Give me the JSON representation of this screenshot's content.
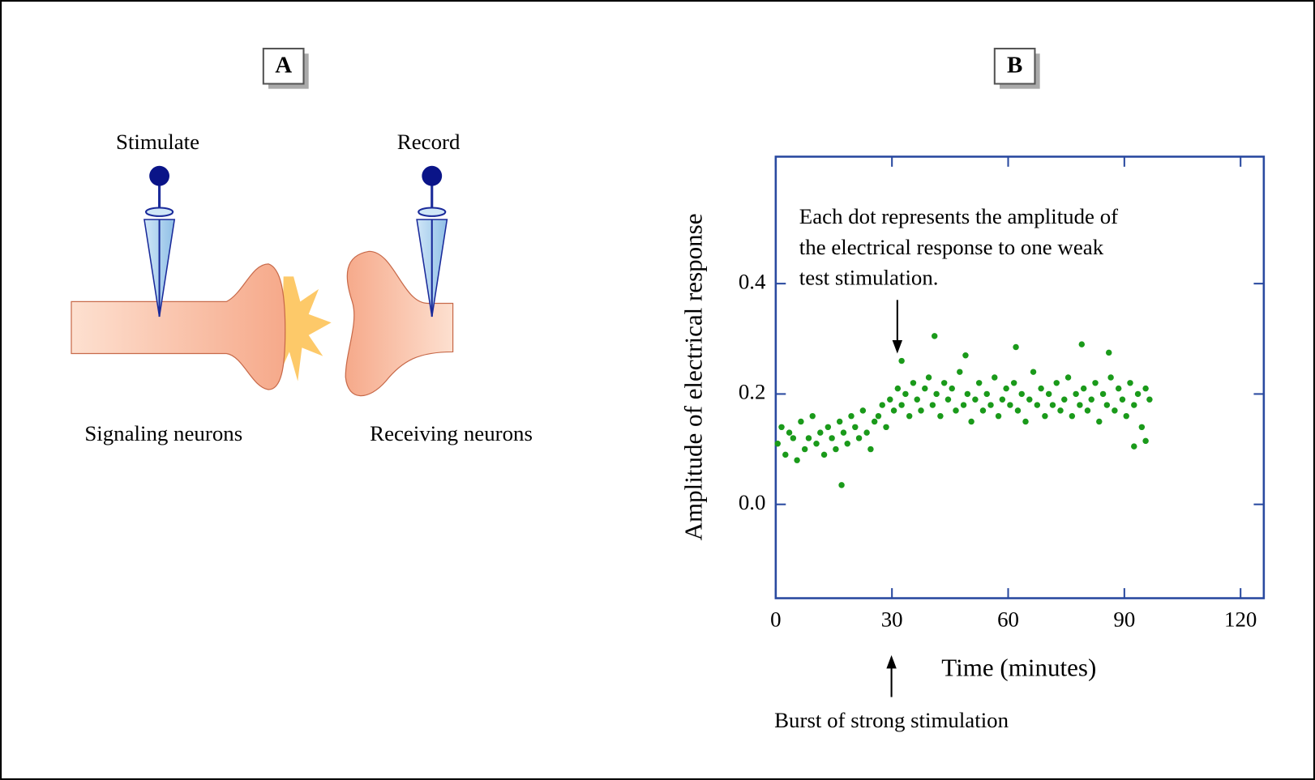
{
  "panel_a": {
    "label": "A",
    "stimulate": "Stimulate",
    "record": "Record",
    "signaling": "Signaling neurons",
    "receiving": "Receiving neurons"
  },
  "chart_data": {
    "type": "scatter",
    "panel_label": "B",
    "x_label": "Time (minutes)",
    "y_label": "Amplitude of electrical response",
    "annotation": [
      "Each dot represents the amplitude of",
      "the electrical response to one weak",
      "test stimulation."
    ],
    "x_annotation": "Burst of strong stimulation",
    "color": "#1a9a1a",
    "xlim": [
      0,
      126
    ],
    "ylim": [
      -0.17,
      0.63
    ],
    "xticks": [
      0,
      30,
      60,
      90,
      120
    ],
    "yticks": [
      {
        "value": 0,
        "label": "0.0"
      },
      0.2,
      0.4
    ],
    "x": [
      0.5,
      1.5,
      2.5,
      3.5,
      4.5,
      5.5,
      6.5,
      7.5,
      8.5,
      9.5,
      10.5,
      11.5,
      12.5,
      13.5,
      14.5,
      15.5,
      16.5,
      17.5,
      18.5,
      19.5,
      20.5,
      21.5,
      22.5,
      23.5,
      24.5,
      25.5,
      26.5,
      27.5,
      28.5,
      29.5,
      30.5,
      31.5,
      32.5,
      33.5,
      34.5,
      35.5,
      36.5,
      37.5,
      38.5,
      39.5,
      40.5,
      41.5,
      42.5,
      43.5,
      44.5,
      45.5,
      46.5,
      47.5,
      48.5,
      49.5,
      50.5,
      51.5,
      52.5,
      53.5,
      54.5,
      55.5,
      56.5,
      57.5,
      58.5,
      59.5,
      60.5,
      61.5,
      62.5,
      63.5,
      64.5,
      65.5,
      66.5,
      67.5,
      68.5,
      69.5,
      70.5,
      71.5,
      72.5,
      73.5,
      74.5,
      75.5,
      76.5,
      77.5,
      78.5,
      79.5,
      80.5,
      81.5,
      82.5,
      83.5,
      84.5,
      85.5,
      86.5,
      87.5,
      88.5,
      89.5,
      90.5,
      91.5,
      92.5,
      93.5,
      94.5,
      95.5,
      96.5,
      17,
      32.5,
      41,
      49,
      62,
      79,
      86,
      92.5,
      95.5
    ],
    "y": [
      0.11,
      0.14,
      0.09,
      0.13,
      0.12,
      0.08,
      0.15,
      0.1,
      0.12,
      0.16,
      0.11,
      0.13,
      0.09,
      0.14,
      0.12,
      0.1,
      0.15,
      0.13,
      0.11,
      0.16,
      0.14,
      0.12,
      0.17,
      0.13,
      0.1,
      0.15,
      0.16,
      0.18,
      0.14,
      0.19,
      0.17,
      0.21,
      0.18,
      0.2,
      0.16,
      0.22,
      0.19,
      0.17,
      0.21,
      0.23,
      0.18,
      0.2,
      0.16,
      0.22,
      0.19,
      0.21,
      0.17,
      0.24,
      0.18,
      0.2,
      0.15,
      0.19,
      0.22,
      0.17,
      0.2,
      0.18,
      0.23,
      0.16,
      0.19,
      0.21,
      0.18,
      0.22,
      0.17,
      0.2,
      0.15,
      0.19,
      0.24,
      0.18,
      0.21,
      0.16,
      0.2,
      0.18,
      0.22,
      0.17,
      0.19,
      0.23,
      0.16,
      0.2,
      0.18,
      0.21,
      0.17,
      0.19,
      0.22,
      0.15,
      0.2,
      0.18,
      0.23,
      0.17,
      0.21,
      0.19,
      0.16,
      0.22,
      0.18,
      0.2,
      0.14,
      0.21,
      0.19,
      0.035,
      0.26,
      0.305,
      0.27,
      0.285,
      0.29,
      0.275,
      0.105,
      0.115
    ]
  }
}
